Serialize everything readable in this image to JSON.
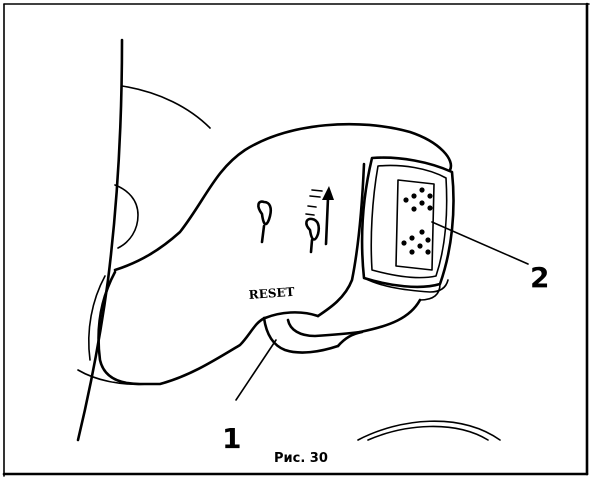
{
  "figure": {
    "caption": "Рис. 30",
    "callouts": {
      "one": "1",
      "two": "2"
    },
    "reset_label": "RESET",
    "icons": [
      "frame-border",
      "stalk-lever-outline",
      "rotary-switch-ring",
      "wiper-blade-icon",
      "washer-spray-up-arrow-icon",
      "button-dots",
      "leader-line"
    ]
  }
}
